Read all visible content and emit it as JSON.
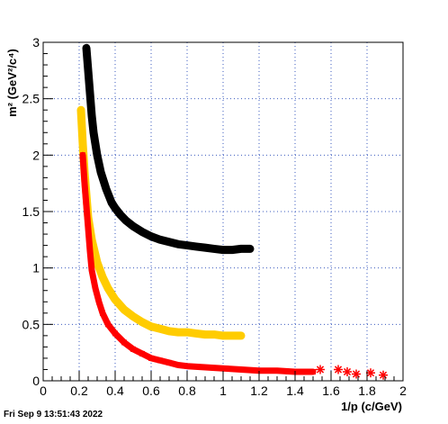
{
  "timestamp": "Fri Sep  9 13:51:43 2022",
  "chart_data": {
    "type": "scatter",
    "xlabel": "1/p (c/GeV)",
    "ylabel": "m² (GeV²/c⁴)",
    "xlim": [
      0,
      2
    ],
    "ylim": [
      0,
      3
    ],
    "x_ticks": [
      "0",
      "0.2",
      "0.4",
      "0.6",
      "0.8",
      "1",
      "1.2",
      "1.4",
      "1.6",
      "1.8",
      "2"
    ],
    "y_ticks": [
      "0",
      "0.5",
      "1",
      "1.5",
      "2",
      "2.5",
      "3"
    ],
    "grid": true,
    "legend": "none",
    "series": [
      {
        "color": "#000000",
        "x": [
          0.24,
          0.25,
          0.26,
          0.27,
          0.28,
          0.3,
          0.32,
          0.35,
          0.38,
          0.4,
          0.43,
          0.46,
          0.5,
          0.55,
          0.6,
          0.65,
          0.7,
          0.75,
          0.8,
          0.85,
          0.9,
          0.95,
          1.0,
          1.05,
          1.1,
          1.15
        ],
        "y": [
          2.95,
          2.75,
          2.55,
          2.35,
          2.2,
          2.0,
          1.85,
          1.7,
          1.58,
          1.53,
          1.47,
          1.42,
          1.37,
          1.32,
          1.28,
          1.25,
          1.23,
          1.21,
          1.2,
          1.19,
          1.18,
          1.17,
          1.16,
          1.16,
          1.17,
          1.17
        ]
      },
      {
        "color": "#ffcc00",
        "x": [
          0.21,
          0.22,
          0.23,
          0.24,
          0.25,
          0.27,
          0.3,
          0.33,
          0.36,
          0.4,
          0.45,
          0.5,
          0.55,
          0.6,
          0.65,
          0.7,
          0.75,
          0.8,
          0.85,
          0.9,
          0.95,
          1.0,
          1.05,
          1.1
        ],
        "y": [
          2.4,
          2.1,
          1.85,
          1.65,
          1.45,
          1.25,
          1.05,
          0.92,
          0.82,
          0.72,
          0.63,
          0.57,
          0.52,
          0.48,
          0.46,
          0.44,
          0.43,
          0.43,
          0.42,
          0.41,
          0.41,
          0.4,
          0.4,
          0.4
        ]
      },
      {
        "color": "#ff0000",
        "x": [
          0.22,
          0.23,
          0.24,
          0.25,
          0.26,
          0.27,
          0.29,
          0.31,
          0.33,
          0.36,
          0.4,
          0.45,
          0.5,
          0.55,
          0.6,
          0.65,
          0.7,
          0.75,
          0.8,
          0.9,
          1.0,
          1.1,
          1.2,
          1.3,
          1.4,
          1.5,
          1.54,
          1.64,
          1.69,
          1.74,
          1.82,
          1.89
        ],
        "y": [
          2.0,
          1.75,
          1.55,
          1.35,
          1.15,
          0.98,
          0.82,
          0.7,
          0.6,
          0.5,
          0.42,
          0.34,
          0.28,
          0.24,
          0.2,
          0.18,
          0.16,
          0.14,
          0.13,
          0.12,
          0.11,
          0.1,
          0.09,
          0.09,
          0.08,
          0.08,
          0.1,
          0.1,
          0.08,
          0.06,
          0.07,
          0.05
        ]
      }
    ]
  }
}
